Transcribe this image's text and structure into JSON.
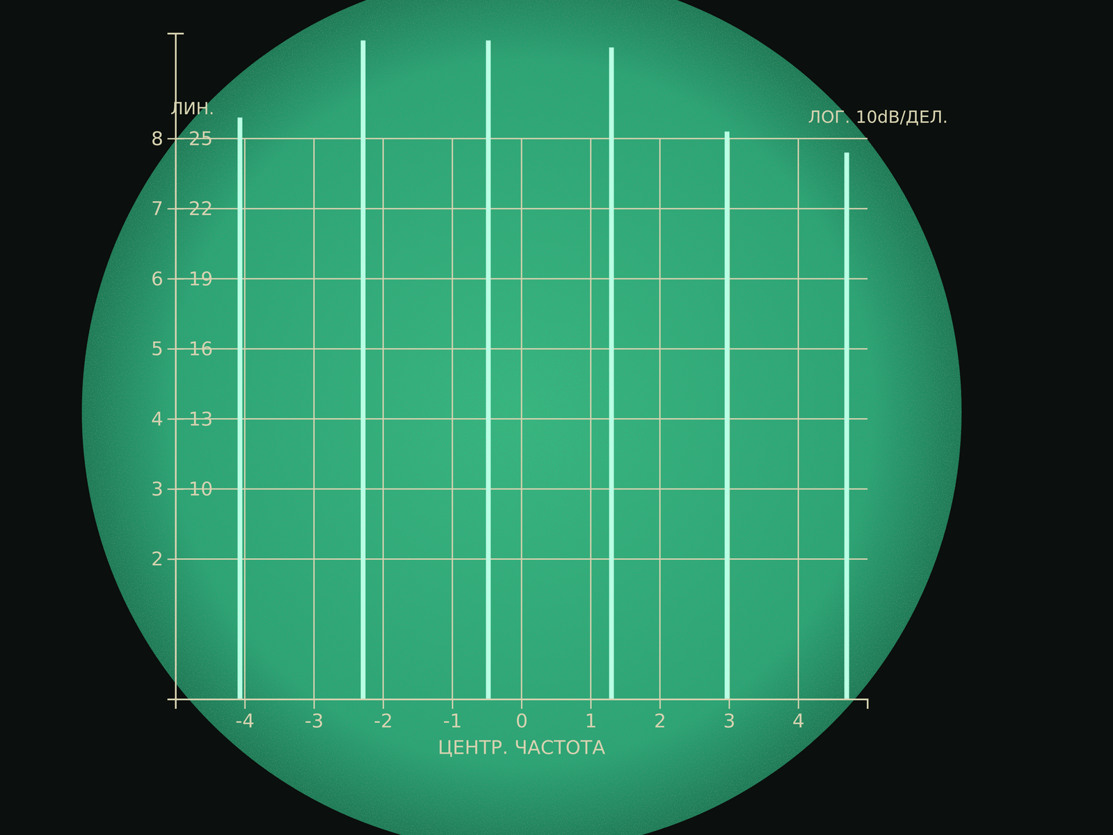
{
  "chart_data": {
    "type": "bar",
    "x": [
      -4.07,
      -2.29,
      -0.48,
      1.3,
      2.97,
      4.7
    ],
    "values": [
      8.3,
      9.4,
      9.4,
      9.3,
      8.1,
      7.8
    ],
    "color": "#b8ffe4",
    "xlim": [
      -5,
      5
    ],
    "xticks": [
      -4,
      -3,
      -2,
      -1,
      0,
      1,
      2,
      3,
      4
    ],
    "ylim": [
      0,
      9.5
    ],
    "yticks": [
      2,
      3,
      4,
      5,
      6,
      7,
      8
    ],
    "y2lim": [
      1,
      29.5
    ],
    "y2ticks": [
      10,
      13,
      16,
      19,
      22,
      25
    ],
    "grid": true,
    "x_label": "ЦЕНТР. ЧАСТОТА",
    "y_label": "ЛИН.",
    "y2_label": "ЛОГ. 10dB/ДЕЛ."
  }
}
